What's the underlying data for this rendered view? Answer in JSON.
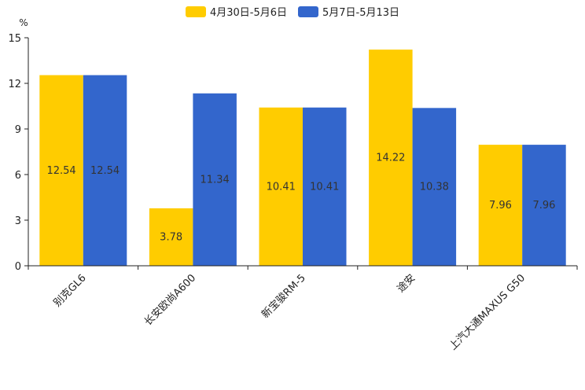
{
  "chart_data": {
    "type": "bar",
    "title": "",
    "unit": "%",
    "xlabel": "",
    "ylabel": "%",
    "ylim": [
      0,
      15
    ],
    "yticks": [
      0,
      3,
      6,
      9,
      12,
      15
    ],
    "grid": false,
    "legend_position": "top-center",
    "categories": [
      "别克GL6",
      "长安欧尚A600",
      "新宝骏RM-5",
      "途安",
      "上汽大通MAXUS G50"
    ],
    "series": [
      {
        "name": "4月30日-5月6日",
        "color": "#FFCC00",
        "values": [
          12.54,
          3.78,
          10.41,
          14.22,
          7.96
        ],
        "labels": [
          "12.54",
          "3.78",
          "10.41",
          "14.22",
          "7.96"
        ]
      },
      {
        "name": "5月7日-5月13日",
        "color": "#3366CC",
        "values": [
          12.54,
          11.34,
          10.41,
          10.38,
          7.96
        ],
        "labels": [
          "12.54",
          "11.34",
          "10.41",
          "10.38",
          "7.96"
        ]
      }
    ]
  }
}
